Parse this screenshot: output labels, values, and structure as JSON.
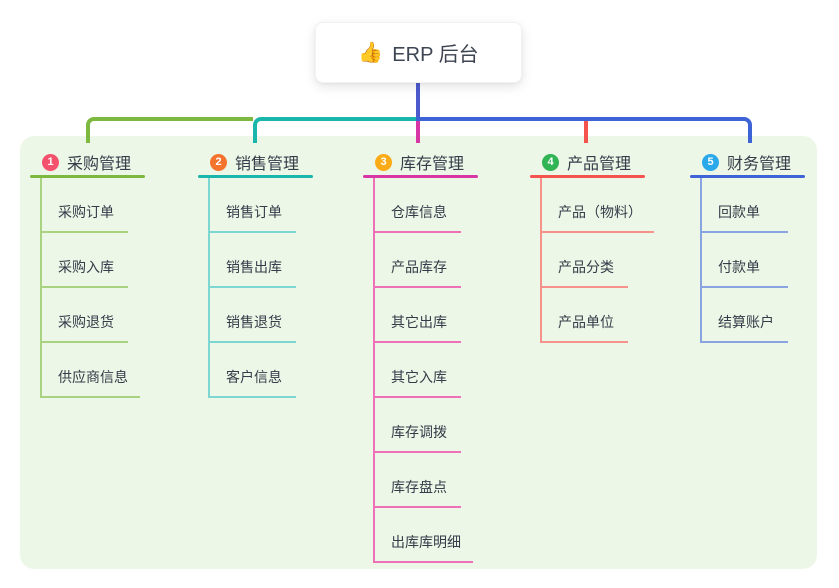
{
  "root": {
    "icon": "👍",
    "label": "ERP 后台"
  },
  "panel_bg": "#edf7e7",
  "connector_root_color": "#4d5ace",
  "branches": [
    {
      "num": "1",
      "title": "采购管理",
      "badge_color": "#f4516c",
      "line_color": "#7cb93e",
      "child_line_color": "#a9d380",
      "children": [
        "采购订单",
        "采购入库",
        "采购退货",
        "供应商信息"
      ]
    },
    {
      "num": "2",
      "title": "销售管理",
      "badge_color": "#f5742d",
      "line_color": "#1ab5ab",
      "child_line_color": "#7dd6cf",
      "children": [
        "销售订单",
        "销售出库",
        "销售退货",
        "客户信息"
      ]
    },
    {
      "num": "3",
      "title": "库存管理",
      "badge_color": "#fbab16",
      "line_color": "#d836a4",
      "child_line_color": "#ee70b7",
      "children": [
        "仓库信息",
        "产品库存",
        "其它出库",
        "其它入库",
        "库存调拨",
        "库存盘点",
        "出库库明细"
      ]
    },
    {
      "num": "4",
      "title": "产品管理",
      "badge_color": "#31b454",
      "line_color": "#f4534e",
      "child_line_color": "#f5928c",
      "children": [
        "产品（物料）",
        "产品分类",
        "产品单位"
      ]
    },
    {
      "num": "5",
      "title": "财务管理",
      "badge_color": "#29a9ea",
      "line_color": "#3e63d6",
      "child_line_color": "#8aa4e2",
      "children": [
        "回款单",
        "付款单",
        "结算账户"
      ]
    }
  ]
}
